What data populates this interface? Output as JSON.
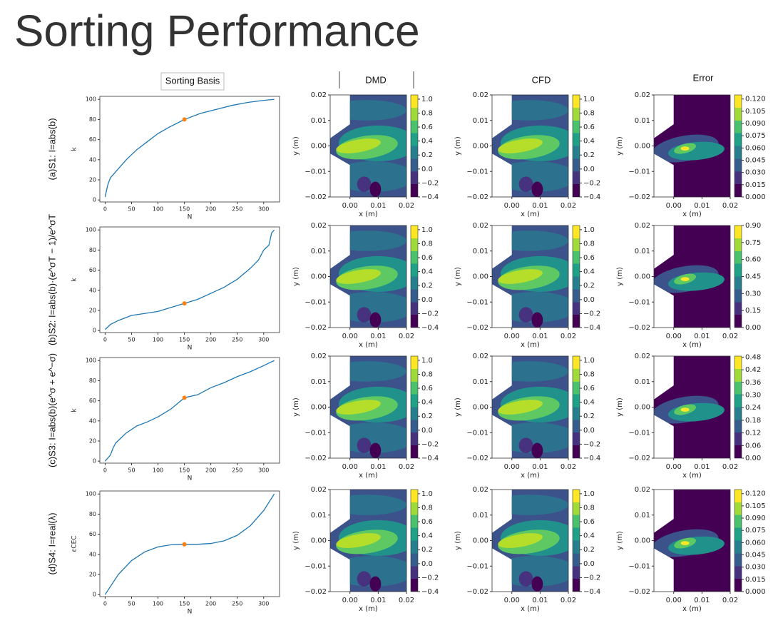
{
  "title": "Sorting Performance",
  "column_headers": [
    "Sorting Basis",
    "DMD",
    "CFD",
    "Error"
  ],
  "chart_data": [
    {
      "type": "line",
      "row_label": "(a)S1: I=abs(b)",
      "xlabel": "N",
      "ylabel": "k",
      "color": "#1f77b4",
      "x": [
        0,
        5,
        10,
        20,
        40,
        60,
        80,
        100,
        120,
        150,
        180,
        210,
        240,
        270,
        300,
        320
      ],
      "values": [
        3,
        15,
        22,
        28,
        40,
        50,
        58,
        66,
        72,
        80,
        86,
        90,
        94,
        97,
        99,
        100
      ],
      "marker": {
        "x": 150,
        "y": 80,
        "color": "#ff7f0e"
      },
      "xlim": [
        -10,
        330
      ],
      "ylim": [
        -2,
        103
      ],
      "xticks": [
        0,
        50,
        100,
        150,
        200,
        250,
        300
      ],
      "yticks": [
        0,
        20,
        40,
        60,
        80,
        100
      ]
    },
    {
      "type": "line",
      "row_label": "(b)S2: I=abs(b)·(e^σT − 1)/e^σT",
      "xlabel": "N",
      "ylabel": "k",
      "color": "#1f77b4",
      "x": [
        0,
        10,
        25,
        50,
        75,
        100,
        125,
        150,
        175,
        200,
        225,
        250,
        275,
        290,
        300,
        310,
        315,
        320
      ],
      "values": [
        1,
        6,
        10,
        15,
        17,
        19,
        23,
        27,
        31,
        37,
        43,
        51,
        62,
        70,
        80,
        85,
        97,
        100
      ],
      "marker": {
        "x": 150,
        "y": 27,
        "color": "#ff7f0e"
      },
      "xlim": [
        -10,
        330
      ],
      "ylim": [
        -2,
        103
      ],
      "xticks": [
        0,
        50,
        100,
        150,
        200,
        250,
        300
      ],
      "yticks": [
        0,
        20,
        40,
        60,
        80,
        100
      ]
    },
    {
      "type": "line",
      "row_label": "(c)S3: I=abs(b)(e^σ + e^−σ)",
      "xlabel": "N",
      "ylabel": "k",
      "color": "#1f77b4",
      "x": [
        0,
        5,
        10,
        15,
        20,
        30,
        40,
        60,
        80,
        100,
        125,
        150,
        175,
        200,
        225,
        250,
        275,
        300,
        320
      ],
      "values": [
        0,
        3,
        6,
        13,
        18,
        23,
        28,
        35,
        39,
        44,
        52,
        63,
        66,
        73,
        78,
        84,
        89,
        95,
        100
      ],
      "marker": {
        "x": 150,
        "y": 63,
        "color": "#ff7f0e"
      },
      "xlim": [
        -10,
        330
      ],
      "ylim": [
        -2,
        103
      ],
      "xticks": [
        0,
        50,
        100,
        150,
        200,
        250,
        300
      ],
      "yticks": [
        0,
        20,
        40,
        60,
        80,
        100
      ]
    },
    {
      "type": "line",
      "row_label": "(d)S4: I=real(λ)",
      "xlabel": "N",
      "ylabel": "εCEC",
      "color": "#1f77b4",
      "x": [
        0,
        25,
        50,
        75,
        100,
        125,
        150,
        175,
        200,
        225,
        250,
        275,
        300,
        320
      ],
      "values": [
        0,
        20,
        33.8,
        42.5,
        47.4,
        49.5,
        50,
        50,
        50.8,
        53.4,
        58.9,
        68.6,
        83.5,
        100
      ],
      "marker": {
        "x": 150,
        "y": 50,
        "color": "#ff7f0e"
      },
      "xlim": [
        -10,
        330
      ],
      "ylim": [
        -2,
        103
      ],
      "xticks": [
        0,
        50,
        100,
        150,
        200,
        250,
        300
      ],
      "yticks": [
        0,
        20,
        40,
        60,
        80,
        100
      ]
    }
  ],
  "contour": {
    "xlabel": "x (m)",
    "ylabel": "y (m)",
    "xlim": [
      -0.007,
      0.02
    ],
    "ylim": [
      -0.02,
      0.02
    ],
    "xticks": [
      {
        "value": 0,
        "label": "0.00"
      },
      {
        "value": 0.01,
        "label": "0.01"
      },
      {
        "value": 0.02,
        "label": "0.02"
      }
    ],
    "yticks": [
      {
        "value": -0.02,
        "label": "−0.02"
      },
      {
        "value": -0.01,
        "label": "−0.01"
      },
      {
        "value": 0,
        "label": "0.00"
      },
      {
        "value": 0.01,
        "label": "0.01"
      },
      {
        "value": 0.02,
        "label": "0.02"
      }
    ],
    "field_colorbar": {
      "lim": [
        -0.4,
        1.06
      ],
      "ticks": [
        {
          "value": -0.4,
          "label": "−0.4"
        },
        {
          "value": -0.2,
          "label": "−0.2"
        },
        {
          "value": 0,
          "label": "0.0"
        },
        0.2,
        0.4,
        0.6,
        0.8,
        {
          "value": 1,
          "label": "1.0"
        }
      ]
    },
    "error_colorbars": [
      {
        "lim": [
          0,
          0.125
        ],
        "ticks": [
          {
            "value": 0,
            "label": "0.000"
          },
          0.015,
          {
            "value": 0.03,
            "label": "0.030"
          },
          0.045,
          {
            "value": 0.06,
            "label": "0.060"
          },
          0.075,
          {
            "value": 0.09,
            "label": "0.090"
          },
          0.105,
          {
            "value": 0.12,
            "label": "0.120"
          }
        ]
      },
      {
        "lim": [
          0,
          0.9
        ],
        "ticks": [
          {
            "value": 0,
            "label": "0.00"
          },
          0.15,
          {
            "value": 0.3,
            "label": "0.30"
          },
          0.45,
          {
            "value": 0.6,
            "label": "0.60"
          },
          0.75,
          {
            "value": 0.9,
            "label": "0.90"
          }
        ]
      },
      {
        "lim": [
          0,
          0.485
        ],
        "ticks": [
          {
            "value": 0,
            "label": "0.00"
          },
          0.06,
          0.12,
          0.18,
          0.24,
          {
            "value": 0.3,
            "label": "0.30"
          },
          0.36,
          0.42,
          0.48
        ]
      },
      {
        "lim": [
          0,
          0.125
        ],
        "ticks": [
          {
            "value": 0,
            "label": "0.000"
          },
          0.015,
          {
            "value": 0.03,
            "label": "0.030"
          },
          0.045,
          {
            "value": 0.06,
            "label": "0.060"
          },
          0.075,
          {
            "value": 0.09,
            "label": "0.090"
          },
          0.105,
          {
            "value": 0.12,
            "label": "0.120"
          }
        ]
      }
    ]
  }
}
